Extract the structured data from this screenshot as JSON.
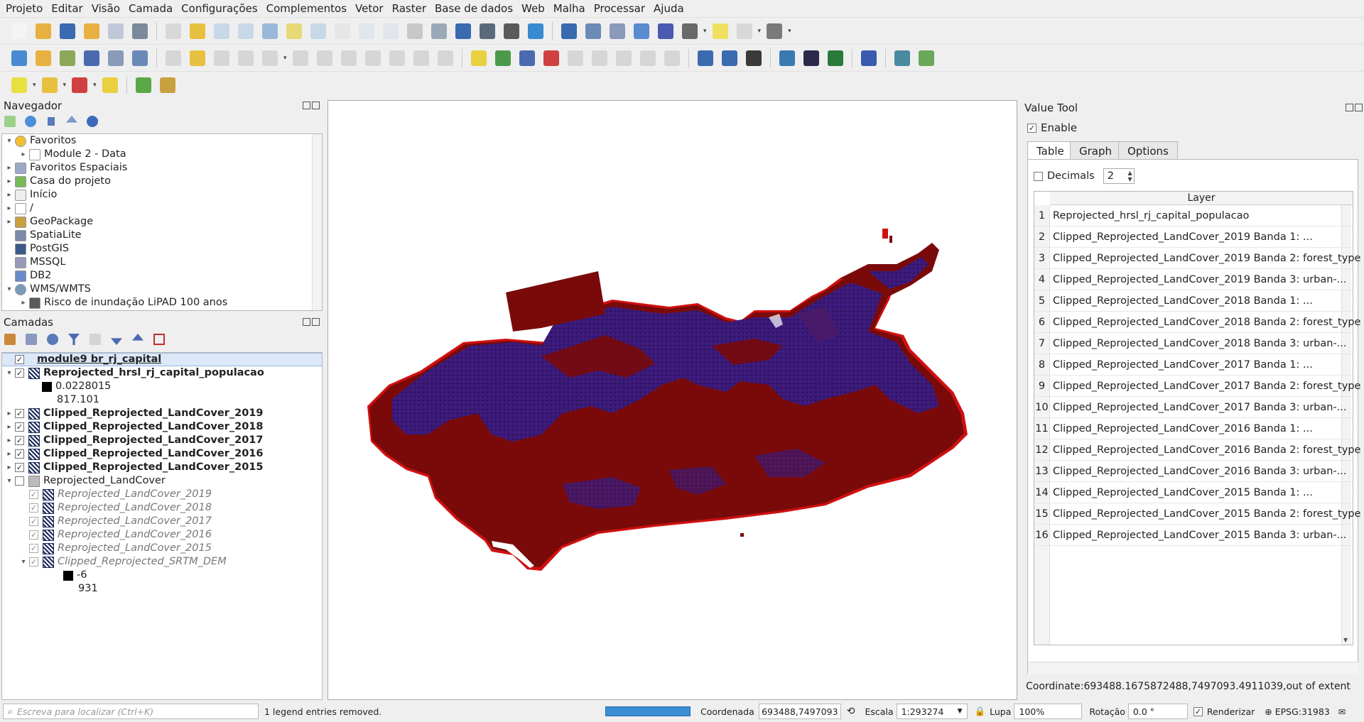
{
  "menubar": [
    "Projeto",
    "Editar",
    "Visão",
    "Camada",
    "Configurações",
    "Complementos",
    "Vetor",
    "Raster",
    "Base de dados",
    "Web",
    "Malha",
    "Processar",
    "Ajuda"
  ],
  "navigator": {
    "title": "Navegador",
    "items": [
      {
        "label": "Favoritos",
        "level": 0,
        "arrow": "▾",
        "icon": "star-icon"
      },
      {
        "label": "Module 2 - Data",
        "level": 1,
        "arrow": "▸",
        "icon": "folder-icon"
      },
      {
        "label": "Favoritos Espaciais",
        "level": 0,
        "arrow": "▸",
        "icon": "spatial-bookmarks-icon"
      },
      {
        "label": "Casa do projeto",
        "level": 0,
        "arrow": "▸",
        "icon": "project-home-icon"
      },
      {
        "label": "Início",
        "level": 0,
        "arrow": "▸",
        "icon": "home-icon"
      },
      {
        "label": "/",
        "level": 0,
        "arrow": "▸",
        "icon": "folder-icon"
      },
      {
        "label": "GeoPackage",
        "level": 0,
        "arrow": "▸",
        "icon": "geopackage-icon"
      },
      {
        "label": "SpatiaLite",
        "level": 0,
        "arrow": "",
        "icon": "spatialite-icon"
      },
      {
        "label": "PostGIS",
        "level": 0,
        "arrow": "",
        "icon": "postgis-icon"
      },
      {
        "label": "MSSQL",
        "level": 0,
        "arrow": "",
        "icon": "mssql-icon"
      },
      {
        "label": "DB2",
        "level": 0,
        "arrow": "",
        "icon": "db2-icon"
      },
      {
        "label": "WMS/WMTS",
        "level": 0,
        "arrow": "▾",
        "icon": "globe-icon"
      },
      {
        "label": "Risco de inundação LiPAD 100 anos",
        "level": 1,
        "arrow": "▸",
        "icon": "wms-layer-icon"
      }
    ]
  },
  "layers": {
    "title": "Camadas",
    "items": [
      {
        "label": "module9 br_rj_capital",
        "level": 0,
        "arrow": "",
        "checked": "✓",
        "icon": "",
        "style": "bold underline selected"
      },
      {
        "label": "Reprojected_hrsl_rj_capital_populacao",
        "level": 0,
        "arrow": "▾",
        "checked": "✓",
        "icon": "raster",
        "style": "bold"
      },
      {
        "label": "0.0228015",
        "level": 1,
        "arrow": "",
        "checked": "",
        "icon": "swatch-black",
        "style": ""
      },
      {
        "label": "817.101",
        "level": 1,
        "arrow": "",
        "checked": "",
        "icon": "none",
        "style": ""
      },
      {
        "label": "Clipped_Reprojected_LandCover_2019",
        "level": 0,
        "arrow": "▸",
        "checked": "✓",
        "icon": "raster",
        "style": "bold"
      },
      {
        "label": "Clipped_Reprojected_LandCover_2018",
        "level": 0,
        "arrow": "▸",
        "checked": "✓",
        "icon": "raster",
        "style": "bold"
      },
      {
        "label": "Clipped_Reprojected_LandCover_2017",
        "level": 0,
        "arrow": "▸",
        "checked": "✓",
        "icon": "raster",
        "style": "bold"
      },
      {
        "label": "Clipped_Reprojected_LandCover_2016",
        "level": 0,
        "arrow": "▸",
        "checked": "✓",
        "icon": "raster",
        "style": "bold"
      },
      {
        "label": "Clipped_Reprojected_LandCover_2015",
        "level": 0,
        "arrow": "▸",
        "checked": "✓",
        "icon": "raster",
        "style": "bold"
      },
      {
        "label": "Reprojected_LandCover",
        "level": 0,
        "arrow": "▾",
        "checked": "",
        "icon": "group",
        "style": ""
      },
      {
        "label": "Reprojected_LandCover_2019",
        "level": 1,
        "arrow": "",
        "checked": "✓",
        "icon": "raster",
        "style": "ital"
      },
      {
        "label": "Reprojected_LandCover_2018",
        "level": 1,
        "arrow": "",
        "checked": "✓",
        "icon": "raster",
        "style": "ital"
      },
      {
        "label": "Reprojected_LandCover_2017",
        "level": 1,
        "arrow": "",
        "checked": "✓",
        "icon": "raster",
        "style": "ital"
      },
      {
        "label": "Reprojected_LandCover_2016",
        "level": 1,
        "arrow": "",
        "checked": "✓",
        "icon": "raster",
        "style": "ital"
      },
      {
        "label": "Reprojected_LandCover_2015",
        "level": 1,
        "arrow": "",
        "checked": "✓",
        "icon": "raster",
        "style": "ital"
      },
      {
        "label": "Clipped_Reprojected_SRTM_DEM",
        "level": 1,
        "arrow": "▾",
        "checked": "✓",
        "icon": "raster",
        "style": "ital"
      },
      {
        "label": "-6",
        "level": 2,
        "arrow": "",
        "checked": "",
        "icon": "swatch-black",
        "style": ""
      },
      {
        "label": "931",
        "level": 2,
        "arrow": "",
        "checked": "",
        "icon": "none",
        "style": ""
      }
    ]
  },
  "value_tool": {
    "title": "Value Tool",
    "enable_label": "Enable",
    "enable_checked": "✓",
    "tabs": [
      "Table",
      "Graph",
      "Options"
    ],
    "decimals_label": "Decimals",
    "decimals_value": "2",
    "column_header": "Layer",
    "rows": [
      "Reprojected_hrsl_rj_capital_populacao",
      "Clipped_Reprojected_LandCover_2019 Banda 1: ...",
      "Clipped_Reprojected_LandCover_2019 Banda 2: forest_type",
      "Clipped_Reprojected_LandCover_2019 Banda 3: urban-...",
      "Clipped_Reprojected_LandCover_2018 Banda 1: ...",
      "Clipped_Reprojected_LandCover_2018 Banda 2: forest_type",
      "Clipped_Reprojected_LandCover_2018 Banda 3: urban-...",
      "Clipped_Reprojected_LandCover_2017 Banda 1: ...",
      "Clipped_Reprojected_LandCover_2017 Banda 2: forest_type",
      "Clipped_Reprojected_LandCover_2017 Banda 3: urban-...",
      "Clipped_Reprojected_LandCover_2016 Banda 1: ...",
      "Clipped_Reprojected_LandCover_2016 Banda 2: forest_type",
      "Clipped_Reprojected_LandCover_2016 Banda 3: urban-...",
      "Clipped_Reprojected_LandCover_2015 Banda 1: ...",
      "Clipped_Reprojected_LandCover_2015 Banda 2: forest_type",
      "Clipped_Reprojected_LandCover_2015 Banda 3: urban-..."
    ],
    "coordinate_text": "Coordinate:693488.1675872488,7497093.4911039,out of extent"
  },
  "statusbar": {
    "search_placeholder": "Escreva para localizar (Ctrl+K)",
    "message": "1 legend entries removed.",
    "coord_label": "Coordenada",
    "coord_value": "693488,7497093",
    "scale_label": "Escala",
    "scale_value": "1:293274",
    "magnifier_label": "Lupa",
    "magnifier_value": "100%",
    "rotation_label": "Rotação",
    "rotation_value": "0.0 °",
    "render_label": "Renderizar",
    "render_checked": "✓",
    "crs": "EPSG:31983"
  },
  "colors": {
    "map_dark_red": "#7a0a0a",
    "map_purple": "#3b1a7a",
    "map_red": "#d01010",
    "selection": "#dce8f8",
    "progress": "#3b8ed6"
  }
}
